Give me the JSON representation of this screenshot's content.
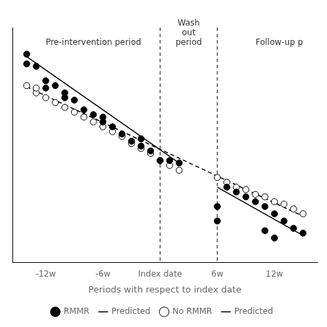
{
  "chart_data": {
    "type": "scatter",
    "xlabel": "Periods with respect to index date",
    "xlim": [
      -15.5,
      16.5
    ],
    "xticks": [
      {
        "value": -12,
        "label": "-12w"
      },
      {
        "value": -6,
        "label": "-6w"
      },
      {
        "value": 0,
        "label": "Index date"
      },
      {
        "value": 6,
        "label": "6w"
      },
      {
        "value": 12,
        "label": "12w"
      }
    ],
    "ylim": [
      0.15,
      1.12
    ],
    "tick_labels": "x",
    "grid": false,
    "legend": "bottom",
    "vlines": [
      0,
      6
    ],
    "annotations": [
      {
        "text": "Pre-intervention period",
        "x": -7.0,
        "y": 1.04
      },
      {
        "text": "Wash\nout\nperiod",
        "x": 3.0,
        "y": 1.04
      },
      {
        "text": "Follow-up p",
        "x": 12.5,
        "y": 1.04
      }
    ],
    "series": [
      {
        "name": "RMMR",
        "type": "scatter",
        "marker": "circle",
        "color": "black",
        "x": [
          -14,
          -14,
          -13,
          -12,
          -12,
          -11,
          -10,
          -10,
          -9,
          -8,
          -7,
          -6,
          -6,
          -5,
          -4,
          -3,
          -2,
          -2,
          -1,
          0,
          1,
          2
        ],
        "values": [
          0.97,
          1.01,
          0.96,
          0.9,
          0.87,
          0.88,
          0.83,
          0.85,
          0.82,
          0.78,
          0.76,
          0.73,
          0.75,
          0.71,
          0.68,
          0.65,
          0.63,
          0.66,
          0.61,
          0.57,
          0.57,
          0.56
        ]
      },
      {
        "name": "RMMR",
        "type": "scatter",
        "marker": "circle",
        "color": "black",
        "x": [
          6,
          7,
          8,
          9,
          10,
          11,
          12,
          13,
          14,
          15
        ],
        "values": [
          0.38,
          0.46,
          0.44,
          0.42,
          0.4,
          0.38,
          0.35,
          0.32,
          0.29,
          0.27
        ]
      },
      {
        "name": "RMMR",
        "type": "scatter",
        "marker": "circle",
        "color": "black",
        "x": [
          6,
          11,
          12
        ],
        "values": [
          0.32,
          0.28,
          0.25
        ]
      },
      {
        "name": "Predicted",
        "type": "line",
        "line_style": "solid",
        "color": "black",
        "x": [
          -14,
          2
        ],
        "values": [
          1.0,
          0.56
        ]
      },
      {
        "name": "Predicted",
        "type": "line",
        "line_style": "solid",
        "color": "black",
        "x": [
          6,
          15
        ],
        "values": [
          0.46,
          0.26
        ]
      },
      {
        "name": "No RMMR",
        "type": "scatter",
        "marker": "open_circle",
        "color": "black",
        "x": [
          -14,
          -13,
          -13,
          -12,
          -11,
          -10,
          -9,
          -8,
          -7,
          -6,
          -5,
          -4,
          -3,
          -2,
          -1,
          0,
          1,
          2,
          6,
          7,
          8,
          9,
          10,
          11,
          12,
          13,
          14,
          15
        ],
        "values": [
          0.88,
          0.85,
          0.87,
          0.83,
          0.81,
          0.79,
          0.77,
          0.75,
          0.73,
          0.71,
          0.69,
          0.67,
          0.64,
          0.62,
          0.6,
          0.57,
          0.55,
          0.53,
          0.5,
          0.48,
          0.46,
          0.45,
          0.43,
          0.42,
          0.4,
          0.39,
          0.37,
          0.35
        ]
      },
      {
        "name": "Predicted",
        "type": "line",
        "line_style": "dashed",
        "color": "black",
        "x": [
          -14,
          15
        ],
        "values": [
          0.875,
          0.34
        ]
      }
    ]
  }
}
